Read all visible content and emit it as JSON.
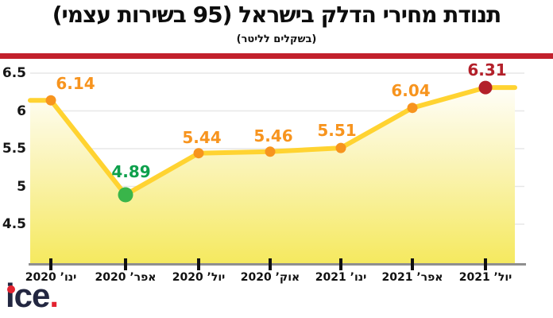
{
  "header": {
    "title": "תנודת מחירי הדלק בישראל (95 בשירות עצמי)",
    "subtitle": "(בשקלים לליטר)"
  },
  "chart_data": {
    "type": "area",
    "title": "תנודת מחירי הדלק בישראל (95 בשירות עצמי)",
    "subtitle": "(בשקלים לליטר)",
    "categories": [
      "ינו’ 2020",
      "אפר’ 2020",
      "יול’ 2020",
      "אוק’ 2020",
      "ינו’ 2021",
      "אפר’ 2021",
      "יול’ 2021"
    ],
    "values": [
      6.14,
      4.89,
      5.44,
      5.46,
      5.51,
      6.04,
      6.31
    ],
    "point_labels": [
      "6.14",
      "4.89",
      "5.44",
      "5.46",
      "5.51",
      "6.04",
      "6.31"
    ],
    "ytick_labels": [
      "6.5",
      "6",
      "5.5",
      "5",
      "4.5"
    ],
    "yticks": [
      6.5,
      6,
      5.5,
      5,
      4.5
    ],
    "ylim": [
      4.0,
      6.5
    ],
    "grid": true,
    "legend": false,
    "highlights": {
      "min_index": 1,
      "last_index": 6
    },
    "colors": {
      "line": "#ffd331",
      "area_top": "#ffffff",
      "area_mid": "#faf3b0",
      "area_bottom": "#f5e95e",
      "marker_default": "#f7941e",
      "marker_min": "#39b54a",
      "marker_last": "#b3202a",
      "label_default": "#f7941e",
      "label_min": "#0ea04c",
      "label_last": "#b3202a",
      "divider": "#c2202c",
      "grid_line": "#e7e7e7",
      "axis_line": "#8f8f8f",
      "tick": "#111111"
    }
  },
  "logo": {
    "text": "ice",
    "period": "."
  }
}
